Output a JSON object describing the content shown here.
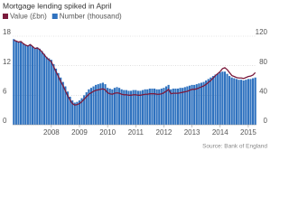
{
  "chart_data": {
    "type": "bar-line",
    "title": "Mortgage lending spiked in April",
    "source": "Source: Bank of England",
    "categories": [
      null,
      null,
      null,
      null,
      null,
      null,
      null,
      null,
      null,
      null,
      null,
      null,
      null,
      null,
      null,
      null,
      "2008",
      null,
      null,
      null,
      null,
      null,
      null,
      null,
      null,
      null,
      null,
      null,
      "2009",
      null,
      null,
      null,
      null,
      null,
      null,
      null,
      null,
      null,
      null,
      null,
      "2010",
      null,
      null,
      null,
      null,
      null,
      null,
      null,
      null,
      null,
      null,
      null,
      "2011",
      null,
      null,
      null,
      null,
      null,
      null,
      null,
      null,
      null,
      null,
      null,
      "2012",
      null,
      null,
      null,
      null,
      null,
      null,
      null,
      null,
      null,
      null,
      null,
      "2013",
      null,
      null,
      null,
      null,
      null,
      null,
      null,
      null,
      null,
      null,
      null,
      "2014",
      null,
      null,
      null,
      null,
      null,
      null,
      null,
      null,
      null,
      null,
      null,
      "2015",
      null,
      null,
      null
    ],
    "series": [
      {
        "name": "Value (£bn)",
        "type": "line",
        "color": "#7b1b3d",
        "axis": "y",
        "values": [
          17.2,
          17,
          16.8,
          16.9,
          16.5,
          16.2,
          16,
          16.3,
          15.9,
          15.5,
          15.6,
          15.3,
          14.8,
          14.2,
          13.6,
          13.2,
          12.8,
          11.8,
          10.8,
          9.8,
          8.8,
          7.9,
          6.9,
          5.9,
          5,
          4.3,
          4,
          4.1,
          4.3,
          4.7,
          5.2,
          5.7,
          6.2,
          6.5,
          6.8,
          7,
          7.1,
          7.2,
          7.3,
          7.1,
          6.5,
          6.3,
          6.2,
          6.4,
          6.5,
          6.4,
          6.2,
          6.1,
          6.1,
          6,
          6,
          6.1,
          6.1,
          6,
          6,
          6.1,
          6.2,
          6.2,
          6.3,
          6.3,
          6.3,
          6.2,
          6.2,
          6.3,
          6.5,
          6.8,
          7.2,
          6.3,
          6.4,
          6.4,
          6.4,
          6.5,
          6.6,
          6.7,
          6.8,
          7,
          7.2,
          7.2,
          7.3,
          7.5,
          7.7,
          7.9,
          8.2,
          8.6,
          9,
          9.5,
          10,
          10.4,
          10.8,
          11.4,
          11.6,
          11.2,
          10.6,
          10,
          9.8,
          9.6,
          9.5,
          9.5,
          9.4,
          9.6,
          9.8,
          9.9,
          10.1,
          10.6
        ]
      },
      {
        "name": "Number (thousand)",
        "type": "bar",
        "color": "#2f72bf",
        "axis": "y2",
        "values": [
          116,
          114,
          112,
          113,
          110,
          108,
          107,
          109,
          106,
          104,
          105,
          103,
          100,
          96,
          92,
          90,
          88,
          82,
          76,
          70,
          64,
          58,
          52,
          45,
          38,
          33,
          30,
          31,
          33,
          36,
          40,
          44,
          48,
          50,
          52,
          54,
          55,
          56,
          57,
          55,
          50,
          49,
          48,
          50,
          51,
          50,
          48,
          47,
          47,
          46,
          46,
          47,
          47,
          46,
          46,
          47,
          48,
          48,
          49,
          49,
          49,
          48,
          48,
          49,
          50,
          52,
          54,
          48,
          49,
          49,
          49,
          50,
          50,
          51,
          52,
          53,
          54,
          54,
          55,
          56,
          57,
          58,
          60,
          62,
          64,
          66,
          68,
          69,
          71,
          72,
          72,
          69,
          66,
          64,
          63,
          62,
          61,
          61,
          60,
          61,
          62,
          62,
          63,
          64
        ]
      }
    ],
    "ylim": [
      0,
      18
    ],
    "yticks": [
      0,
      6,
      12,
      18
    ],
    "y2lim": [
      0,
      120
    ],
    "y2ticks": [
      0,
      40,
      80,
      120
    ],
    "grid": true
  }
}
